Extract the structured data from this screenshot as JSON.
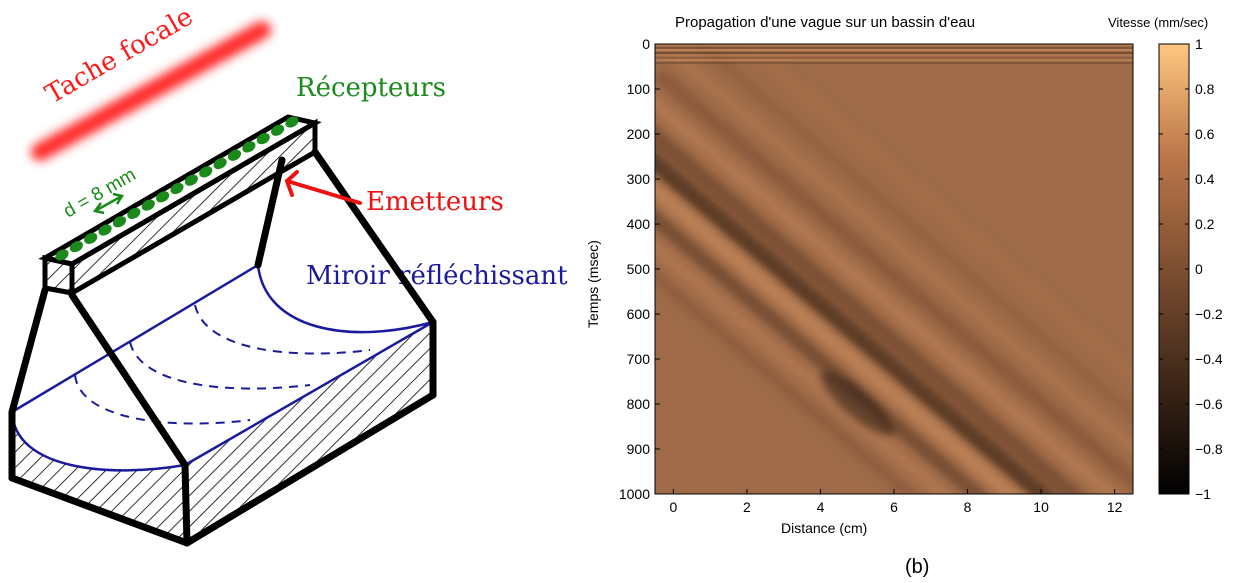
{
  "diagram": {
    "focal_spot_label": "Tache focale",
    "receivers_label": "Récepteurs",
    "emitters_label": "Emetteurs",
    "mirror_label": "Miroir réfléchissant",
    "spacing_label": "d = 8 mm",
    "colors": {
      "focal": "#ff1a1a",
      "receivers": "#1a8a1a",
      "emitters": "#ee1111",
      "mirror": "#1a1a9c",
      "frame": "#000000"
    }
  },
  "plot": {
    "title": "Propagation d'une vague sur un bassin d'eau",
    "xlabel": "Distance (cm)",
    "ylabel": "Temps (msec)",
    "colorbar_label": "Vitesse (mm/sec)",
    "caption": "(b)"
  },
  "chart_data": {
    "type": "heatmap",
    "title": "Propagation d'une vague sur un bassin d'eau",
    "xlabel": "Distance (cm)",
    "ylabel": "Temps (msec)",
    "xlim": [
      -0.5,
      12.5
    ],
    "ylim": [
      0,
      1000
    ],
    "y_reversed": true,
    "xticks": [
      0,
      2,
      4,
      6,
      8,
      10,
      12
    ],
    "yticks": [
      0,
      100,
      200,
      300,
      400,
      500,
      600,
      700,
      800,
      900,
      1000
    ],
    "colorbar": {
      "label": "Vitesse (mm/sec)",
      "range": [
        -1,
        1
      ],
      "ticks": [
        "1",
        "0.8",
        "0.6",
        "0.4",
        "0.2",
        "0",
        "−0.2",
        "−0.4",
        "−0.6",
        "−0.8",
        "−1"
      ],
      "colormap": "copper"
    },
    "wave_front": {
      "start": {
        "distance_cm": 0,
        "time_ms": 300
      },
      "end": {
        "distance_cm": 10,
        "time_ms": 1000
      }
    },
    "min_velocity_region": {
      "distance_cm": [
        4,
        6
      ],
      "time_ms": [
        750,
        850
      ],
      "value": -0.6
    }
  }
}
